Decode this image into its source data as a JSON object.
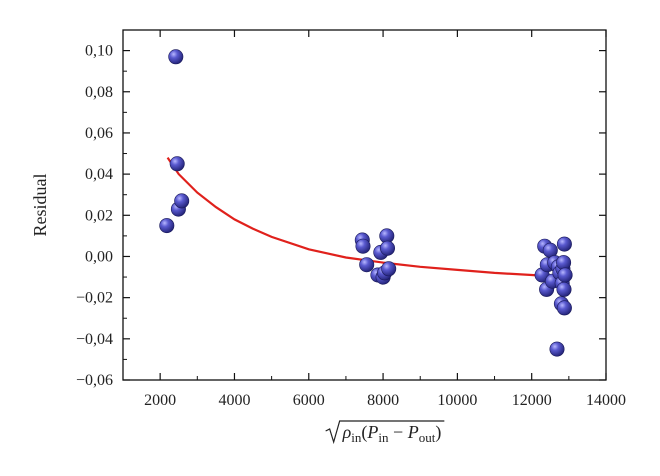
{
  "chart_data": {
    "type": "scatter",
    "xlabel": {
      "parts": [
        {
          "text": "ρ",
          "italic": true
        },
        {
          "text": "in",
          "sub": true
        },
        {
          "text": "(",
          "italic": false
        },
        {
          "text": "P",
          "italic": true
        },
        {
          "text": "in",
          "sub": true
        },
        {
          "text": " − ",
          "italic": false
        },
        {
          "text": "P",
          "italic": true
        },
        {
          "text": "out",
          "sub": true
        },
        {
          "text": ")",
          "italic": false
        }
      ],
      "radical": true
    },
    "ylabel": "Residual",
    "xlim": [
      1000,
      14000
    ],
    "ylim": [
      -0.06,
      0.11
    ],
    "x_ticks": [
      2000,
      4000,
      6000,
      8000,
      10000,
      12000,
      14000
    ],
    "x_tick_labels": [
      "2000",
      "4000",
      "6000",
      "8000",
      "10000",
      "12000",
      "14000"
    ],
    "y_ticks": [
      -0.06,
      -0.04,
      -0.02,
      0.0,
      0.02,
      0.04,
      0.06,
      0.08,
      0.1
    ],
    "y_tick_labels": [
      "−0,06",
      "−0,04",
      "−0,02",
      "0,00",
      "0,02",
      "0,04",
      "0,06",
      "0,08",
      "0,10"
    ],
    "grid": false,
    "marker_color": "#3a3aa0",
    "fit_color": "#e0211c",
    "points": [
      {
        "x": 2180,
        "y": 0.015
      },
      {
        "x": 2420,
        "y": 0.097
      },
      {
        "x": 2460,
        "y": 0.045
      },
      {
        "x": 2490,
        "y": 0.023
      },
      {
        "x": 2580,
        "y": 0.027
      },
      {
        "x": 7440,
        "y": 0.008
      },
      {
        "x": 7460,
        "y": 0.005
      },
      {
        "x": 7560,
        "y": -0.004
      },
      {
        "x": 7860,
        "y": -0.009
      },
      {
        "x": 7940,
        "y": 0.002
      },
      {
        "x": 8000,
        "y": -0.01
      },
      {
        "x": 8040,
        "y": -0.008
      },
      {
        "x": 8100,
        "y": 0.01
      },
      {
        "x": 8120,
        "y": 0.004
      },
      {
        "x": 8150,
        "y": -0.006
      },
      {
        "x": 12280,
        "y": -0.009
      },
      {
        "x": 12350,
        "y": 0.005
      },
      {
        "x": 12400,
        "y": -0.016
      },
      {
        "x": 12420,
        "y": -0.004
      },
      {
        "x": 12500,
        "y": 0.003
      },
      {
        "x": 12560,
        "y": -0.012
      },
      {
        "x": 12620,
        "y": -0.003
      },
      {
        "x": 12680,
        "y": -0.045
      },
      {
        "x": 12720,
        "y": -0.005
      },
      {
        "x": 12760,
        "y": -0.008
      },
      {
        "x": 12800,
        "y": -0.023
      },
      {
        "x": 12820,
        "y": -0.013
      },
      {
        "x": 12840,
        "y": -0.006
      },
      {
        "x": 12860,
        "y": -0.003
      },
      {
        "x": 12870,
        "y": -0.016
      },
      {
        "x": 12880,
        "y": -0.025
      },
      {
        "x": 12880,
        "y": 0.006
      },
      {
        "x": 12900,
        "y": -0.009
      }
    ],
    "fit_curve": [
      {
        "x": 2200,
        "y": 0.048
      },
      {
        "x": 2500,
        "y": 0.04
      },
      {
        "x": 3000,
        "y": 0.031
      },
      {
        "x": 3500,
        "y": 0.024
      },
      {
        "x": 4000,
        "y": 0.018
      },
      {
        "x": 4500,
        "y": 0.0135
      },
      {
        "x": 5000,
        "y": 0.0095
      },
      {
        "x": 6000,
        "y": 0.0035
      },
      {
        "x": 7000,
        "y": -0.0005
      },
      {
        "x": 8000,
        "y": -0.003
      },
      {
        "x": 9000,
        "y": -0.005
      },
      {
        "x": 10000,
        "y": -0.0065
      },
      {
        "x": 11000,
        "y": -0.008
      },
      {
        "x": 12000,
        "y": -0.009
      },
      {
        "x": 12900,
        "y": -0.01
      }
    ]
  }
}
